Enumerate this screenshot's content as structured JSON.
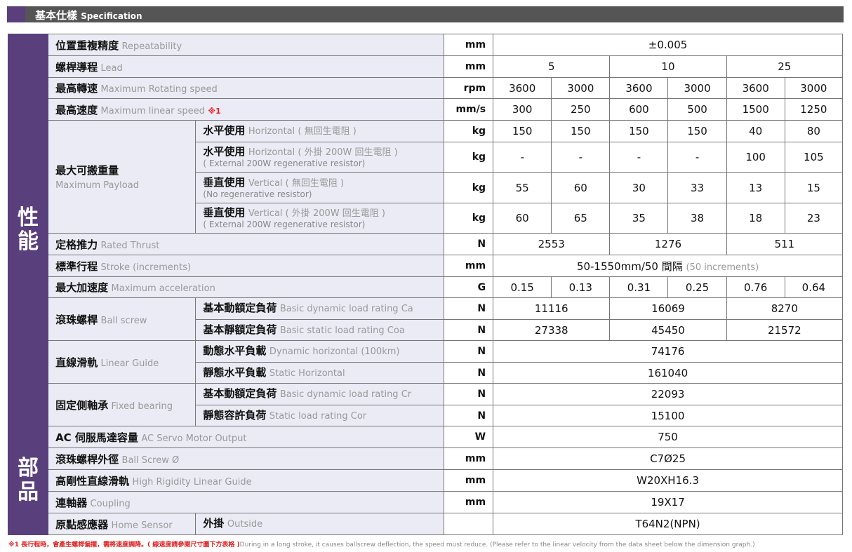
{
  "header": {
    "title_zh": "基本仕樣",
    "title_en": "Specification"
  },
  "sections": {
    "performance": "性能",
    "parts": "部品"
  },
  "rows": [
    {
      "zh": "位置重複精度",
      "en": "Repeatability",
      "unit": "mm",
      "values": [
        "±0.005"
      ],
      "span": 6
    },
    {
      "zh": "螺桿導程",
      "en": "Lead",
      "unit": "mm",
      "values": [
        "5",
        "10",
        "25"
      ],
      "span": 2
    },
    {
      "zh": "最高轉速",
      "en": "Maximum Rotating speed",
      "unit": "rpm",
      "values": [
        "3600",
        "3000",
        "3600",
        "3000",
        "3600",
        "3000"
      ],
      "span": 1
    },
    {
      "zh": "最高速度",
      "en": "Maximum linear speed",
      "note": "※1",
      "unit": "mm/s",
      "values": [
        "300",
        "250",
        "600",
        "500",
        "1500",
        "1250"
      ],
      "span": 1
    },
    {
      "zh": "最大可搬重量",
      "en": "Maximum Payload",
      "rowspan": 4,
      "sub_zh": "水平使用",
      "sub_en": "Horizontal ( 無回生電阻 )",
      "unit": "kg",
      "values": [
        "150",
        "150",
        "150",
        "150",
        "40",
        "80"
      ],
      "span": 1
    },
    {
      "sub_zh": "水平使用",
      "sub_en": "Horizontal ( 外掛 200W 回生電阻 )",
      "sub_en2": "( External 200W regenerative resistor)",
      "unit": "kg",
      "values": [
        "-",
        "-",
        "-",
        "-",
        "100",
        "105"
      ],
      "span": 1,
      "tall": true
    },
    {
      "sub_zh": "垂直使用",
      "sub_en": "Vertical ( 無回生電阻 )",
      "sub_en2": "(No regenerative resistor)",
      "unit": "kg",
      "values": [
        "55",
        "60",
        "30",
        "33",
        "13",
        "15"
      ],
      "span": 1,
      "tall": true
    },
    {
      "sub_zh": "垂直使用",
      "sub_en": "Vertical ( 外掛 200W 回生電阻 )",
      "sub_en2": "( External 200W regenerative resistor)",
      "unit": "kg",
      "values": [
        "60",
        "65",
        "35",
        "38",
        "18",
        "23"
      ],
      "span": 1,
      "tall": true
    },
    {
      "zh": "定格推力",
      "en": "Rated Thrust",
      "unit": "N",
      "values": [
        "2553",
        "1276",
        "511"
      ],
      "span": 2
    },
    {
      "zh": "標準行程",
      "en": "Stroke (increments)",
      "unit": "mm",
      "values": [
        "50-1550mm/50 間隔"
      ],
      "value_note": "(50 increments)",
      "span": 6
    },
    {
      "zh": "最大加速度",
      "en": "Maximum acceleration",
      "unit": "G",
      "values": [
        "0.15",
        "0.13",
        "0.31",
        "0.25",
        "0.76",
        "0.64"
      ],
      "span": 1
    },
    {
      "zh": "滾珠螺桿",
      "en": "Ball screw",
      "rowspan": 2,
      "sub_zh": "基本動額定負荷",
      "sub_en": "Basic dynamic load rating Ca",
      "unit": "N",
      "values": [
        "11116",
        "16069",
        "8270"
      ],
      "span": 2
    },
    {
      "sub_zh": "基本靜額定負荷",
      "sub_en": "Basic static load rating Coa",
      "unit": "N",
      "values": [
        "27338",
        "45450",
        "21572"
      ],
      "span": 2
    },
    {
      "zh": "直線滑軌",
      "en": "Linear Guide",
      "rowspan": 2,
      "sub_zh": "動態水平負載",
      "sub_en": "Dynamic horizontal (100km)",
      "unit": "N",
      "values": [
        "74176"
      ],
      "span": 6
    },
    {
      "sub_zh": "靜態水平負載",
      "sub_en": "Static Horizontal",
      "unit": "N",
      "values": [
        "161040"
      ],
      "span": 6
    },
    {
      "zh": "固定側軸承",
      "en": "Fixed bearing",
      "rowspan": 2,
      "sub_zh": "基本動額定負荷",
      "sub_en": "Basic dynamic load rating Cr",
      "unit": "N",
      "values": [
        "22093"
      ],
      "span": 6
    },
    {
      "sub_zh": "靜態容許負荷",
      "sub_en": "Static load rating Cor",
      "unit": "N",
      "values": [
        "15100"
      ],
      "span": 6
    },
    {
      "zh": "AC 伺服馬達容量",
      "en": "AC Servo Motor Output",
      "unit": "W",
      "values": [
        "750"
      ],
      "span": 6
    },
    {
      "zh": "滾珠螺桿外徑",
      "en": "Ball Screw Ø",
      "unit": "mm",
      "values": [
        "C7Ø25"
      ],
      "span": 6
    },
    {
      "zh": "高剛性直線滑軌",
      "en": "High Rigidity Linear Guide",
      "unit": "mm",
      "values": [
        "W20XH16.3"
      ],
      "span": 6
    },
    {
      "zh": "連軸器",
      "en": "Coupling",
      "unit": "mm",
      "values": [
        "19X17"
      ],
      "span": 6
    },
    {
      "zh": "原點感應器",
      "en": "Home Sensor",
      "rowspan": 1,
      "sub_zh": "外掛",
      "sub_en": "Outside",
      "unit": "",
      "values": [
        "T64N2(NPN)"
      ],
      "span": 6
    }
  ],
  "footnote": {
    "mark_zh": "※1 長行程時，會產生螺桿偏擺，需將速度調降。( 線速度請參閱尺寸圖下方表格 )",
    "en": "During in a long stroke, it causes ballscrew deflection, the speed must reduce. (Please refer to the linear velocity from the data sheet below the dimension graph.)"
  },
  "colors": {
    "accent": "#5a3f7d",
    "header_bg": "#555555",
    "note": "#e02020"
  }
}
